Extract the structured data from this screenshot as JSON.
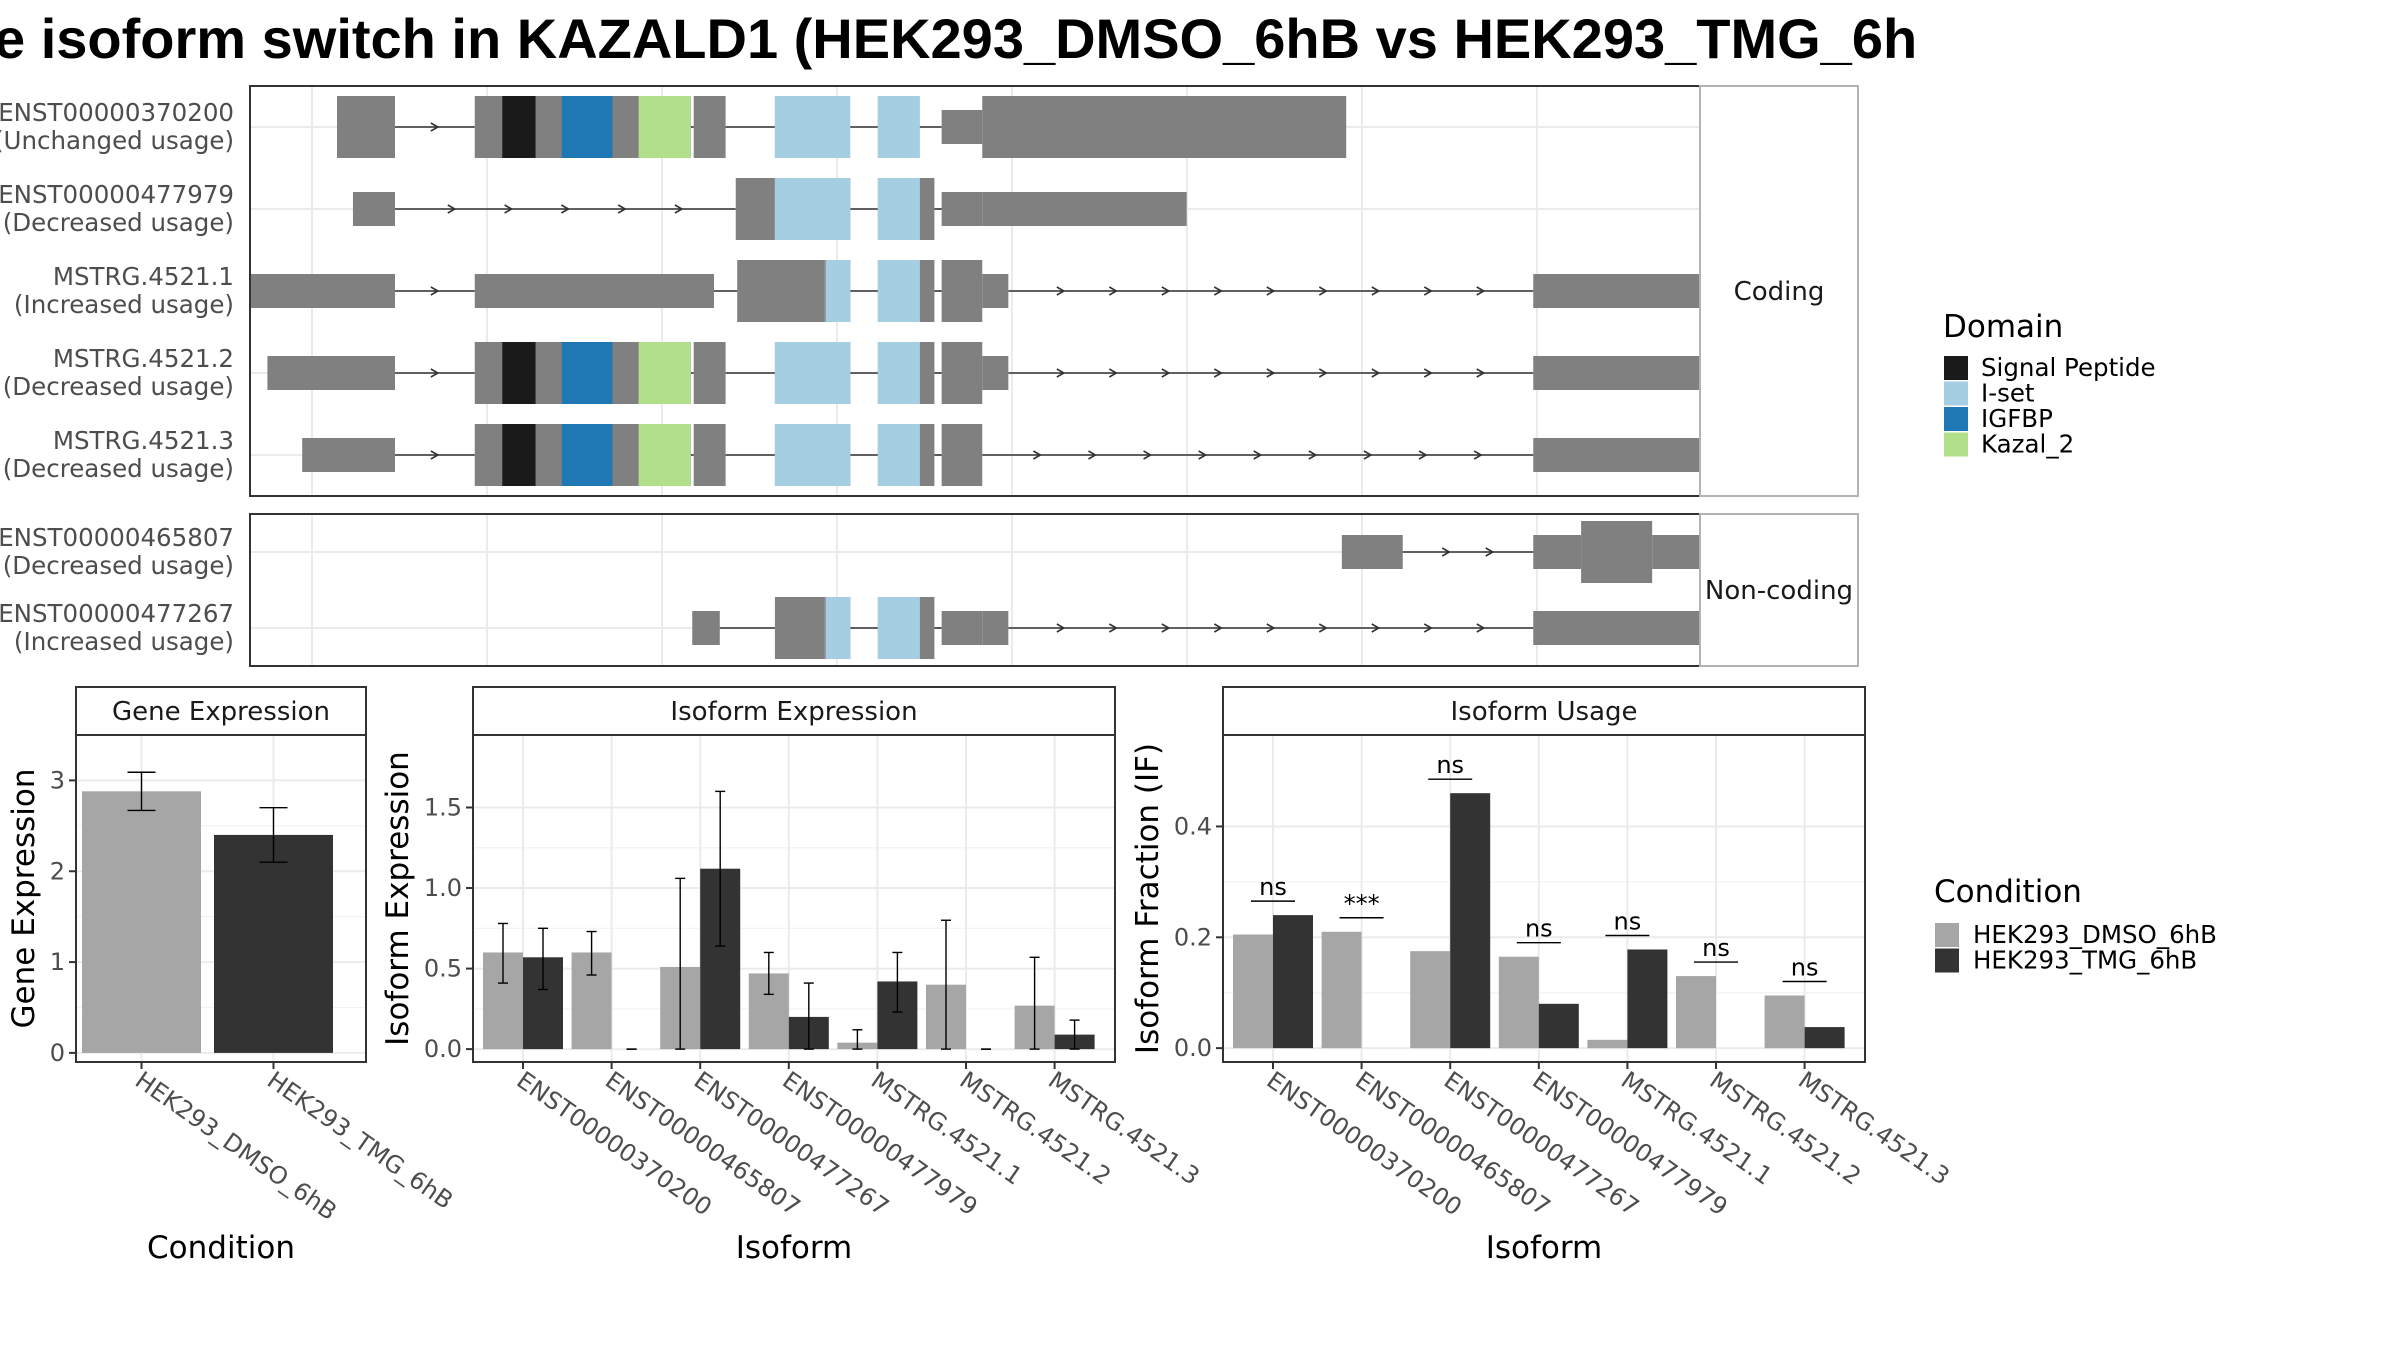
{
  "title": "e isoform switch in KAZALD1 (HEK293_DMSO_6hB vs HEK293_TMG_6h",
  "colors": {
    "exon": "#808080",
    "signal_peptide": "#1a1a1a",
    "i_set": "#a6cee3",
    "igfbp": "#1f78b4",
    "kazal_2": "#b2df8a",
    "dmso": "#a6a6a6",
    "tmg": "#333333"
  },
  "domain_legend": {
    "title": "Domain",
    "items": [
      {
        "label": "Signal Peptide",
        "color_key": "signal_peptide"
      },
      {
        "label": "I-set",
        "color_key": "i_set"
      },
      {
        "label": "IGFBP",
        "color_key": "igfbp"
      },
      {
        "label": "Kazal_2",
        "color_key": "kazal_2"
      }
    ]
  },
  "condition_legend": {
    "title": "Condition",
    "items": [
      {
        "label": "HEK293_DMSO_6hB",
        "color_key": "dmso"
      },
      {
        "label": "HEK293_TMG_6hB",
        "color_key": "tmg"
      }
    ]
  },
  "chart_data": [
    {
      "type": "gene-structure",
      "panels": [
        {
          "strip": "Coding",
          "isoforms": [
            {
              "name": "ENST00000370200",
              "usage": "(Unchanged usage)",
              "exons": [
                [
                  0.06,
                  0.1
                ],
                [
                  0.155,
                  0.177
                ],
                [
                  0.177,
                  0.242
                ],
                [
                  0.244,
                  0.304
                ],
                [
                  0.306,
                  0.328
                ],
                [
                  0.362,
                  0.388
                ],
                [
                  0.433,
                  0.444
                ],
                [
                  0.477,
                  0.505
                ],
                [
                  0.505,
                  0.756
                ]
              ],
              "utr": [
                [
                  0.155,
                  0.174
                ],
                [
                  0.328,
                  0.335
                ],
                [
                  0.477,
                  0.505
                ]
              ],
              "domains": [
                [
                  0.174,
                  0.197,
                  "signal_peptide"
                ],
                [
                  0.197,
                  0.215,
                  "exon"
                ],
                [
                  0.215,
                  0.25,
                  "igfbp"
                ],
                [
                  0.25,
                  0.268,
                  "exon"
                ],
                [
                  0.268,
                  0.304,
                  "kazal_2"
                ],
                [
                  0.362,
                  0.414,
                  "i_set"
                ],
                [
                  0.433,
                  0.462,
                  "i_set"
                ]
              ]
            },
            {
              "name": "ENST00000477979",
              "usage": "(Decreased usage)",
              "exons": [
                [
                  0.071,
                  0.1
                ],
                [
                  0.335,
                  0.362
                ],
                [
                  0.362,
                  0.414
                ],
                [
                  0.433,
                  0.472
                ],
                [
                  0.477,
                  0.505
                ],
                [
                  0.505,
                  0.646
                ]
              ],
              "utr": [
                [
                  0.071,
                  0.1
                ],
                [
                  0.335,
                  0.347
                ],
                [
                  0.477,
                  0.505
                ],
                [
                  0.505,
                  0.646
                ]
              ],
              "domains": [
                [
                  0.362,
                  0.414,
                  "i_set"
                ],
                [
                  0.433,
                  0.462,
                  "i_set"
                ]
              ]
            },
            {
              "name": "MSTRG.4521.1",
              "usage": "(Increased usage)",
              "exons": [
                [
                  0.0,
                  0.1
                ],
                [
                  0.155,
                  0.32
                ],
                [
                  0.336,
                  0.396
                ],
                [
                  0.396,
                  0.414
                ],
                [
                  0.433,
                  0.472
                ],
                [
                  0.477,
                  0.505
                ],
                [
                  0.505,
                  0.523
                ],
                [
                  0.885,
                  1.024
                ]
              ],
              "utr": [
                [
                  0.0,
                  0.1
                ],
                [
                  0.155,
                  0.32
                ],
                [
                  0.336,
                  0.391
                ],
                [
                  0.505,
                  0.523
                ],
                [
                  0.885,
                  1.024
                ]
              ],
              "domains": [
                [
                  0.397,
                  0.414,
                  "i_set"
                ],
                [
                  0.433,
                  0.462,
                  "i_set"
                ]
              ]
            },
            {
              "name": "MSTRG.4521.2",
              "usage": "(Decreased usage)",
              "exons": [
                [
                  0.012,
                  0.1
                ],
                [
                  0.155,
                  0.177
                ],
                [
                  0.177,
                  0.242
                ],
                [
                  0.244,
                  0.304
                ],
                [
                  0.306,
                  0.328
                ],
                [
                  0.362,
                  0.414
                ],
                [
                  0.433,
                  0.472
                ],
                [
                  0.477,
                  0.505
                ],
                [
                  0.505,
                  0.523
                ],
                [
                  0.885,
                  1.024
                ]
              ],
              "utr": [
                [
                  0.012,
                  0.1
                ],
                [
                  0.155,
                  0.174
                ],
                [
                  0.505,
                  0.523
                ],
                [
                  0.885,
                  1.024
                ]
              ],
              "domains": [
                [
                  0.174,
                  0.197,
                  "signal_peptide"
                ],
                [
                  0.197,
                  0.215,
                  "exon"
                ],
                [
                  0.215,
                  0.25,
                  "igfbp"
                ],
                [
                  0.25,
                  0.268,
                  "exon"
                ],
                [
                  0.268,
                  0.304,
                  "kazal_2"
                ],
                [
                  0.362,
                  0.414,
                  "i_set"
                ],
                [
                  0.433,
                  0.462,
                  "i_set"
                ]
              ]
            },
            {
              "name": "MSTRG.4521.3",
              "usage": "(Decreased usage)",
              "exons": [
                [
                  0.036,
                  0.1
                ],
                [
                  0.155,
                  0.177
                ],
                [
                  0.177,
                  0.242
                ],
                [
                  0.244,
                  0.304
                ],
                [
                  0.306,
                  0.328
                ],
                [
                  0.362,
                  0.414
                ],
                [
                  0.433,
                  0.472
                ],
                [
                  0.477,
                  0.505
                ],
                [
                  0.885,
                  1.024
                ]
              ],
              "utr": [
                [
                  0.036,
                  0.1
                ],
                [
                  0.155,
                  0.174
                ],
                [
                  0.885,
                  1.024
                ]
              ],
              "domains": [
                [
                  0.174,
                  0.197,
                  "signal_peptide"
                ],
                [
                  0.197,
                  0.215,
                  "exon"
                ],
                [
                  0.215,
                  0.25,
                  "igfbp"
                ],
                [
                  0.25,
                  0.268,
                  "exon"
                ],
                [
                  0.268,
                  0.304,
                  "kazal_2"
                ],
                [
                  0.362,
                  0.414,
                  "i_set"
                ],
                [
                  0.433,
                  0.462,
                  "i_set"
                ]
              ]
            }
          ]
        },
        {
          "strip": "Non-coding",
          "isoforms": [
            {
              "name": "ENST00000465807",
              "usage": "(Decreased usage)",
              "exons": [
                [
                  0.753,
                  0.795
                ],
                [
                  0.885,
                  0.918
                ],
                [
                  0.918,
                  0.967
                ],
                [
                  0.967,
                  1.024
                ]
              ],
              "utr": [
                [
                  0.753,
                  0.795
                ],
                [
                  0.885,
                  0.918
                ],
                [
                  0.967,
                  1.024
                ]
              ],
              "domains": []
            },
            {
              "name": "ENST00000477267",
              "usage": "(Increased usage)",
              "exons": [
                [
                  0.305,
                  0.324
                ],
                [
                  0.362,
                  0.396
                ],
                [
                  0.396,
                  0.414
                ],
                [
                  0.433,
                  0.472
                ],
                [
                  0.477,
                  0.505
                ],
                [
                  0.505,
                  0.523
                ],
                [
                  0.885,
                  1.024
                ]
              ],
              "utr": [
                [
                  0.305,
                  0.324
                ],
                [
                  0.362,
                  0.391
                ],
                [
                  0.477,
                  0.505
                ],
                [
                  0.505,
                  0.523
                ],
                [
                  0.885,
                  1.024
                ]
              ],
              "domains": [
                [
                  0.397,
                  0.414,
                  "i_set"
                ],
                [
                  0.433,
                  0.462,
                  "i_set"
                ]
              ]
            }
          ]
        }
      ]
    },
    {
      "type": "bar",
      "strip": "Gene Expression",
      "xlabel": "Condition",
      "ylabel": "Gene Expression",
      "ylim": [
        -0.1,
        3.5
      ],
      "yticks": [
        0,
        1,
        2,
        3
      ],
      "categories": [
        "HEK293_DMSO_6hB",
        "HEK293_TMG_6hB"
      ],
      "values": [
        2.88,
        2.4
      ],
      "errors": [
        [
          2.67,
          3.09
        ],
        [
          2.1,
          2.7
        ]
      ]
    },
    {
      "type": "bar",
      "strip": "Isoform Expression",
      "xlabel": "Isoform",
      "ylabel": "Isoform Expression",
      "ylim": [
        -0.08,
        1.95
      ],
      "yticks": [
        0.0,
        0.5,
        1.0,
        1.5
      ],
      "yticklabels": [
        "0.0",
        "0.5",
        "1.0",
        "1.5"
      ],
      "categories": [
        "ENST00000370200",
        "ENST00000465807",
        "ENST00000477267",
        "ENST00000477979",
        "MSTRG.4521.1",
        "MSTRG.4521.2",
        "MSTRG.4521.3"
      ],
      "series": [
        {
          "name": "HEK293_DMSO_6hB",
          "values": [
            0.6,
            0.6,
            0.51,
            0.47,
            0.04,
            0.4,
            0.27
          ],
          "errors": [
            [
              0.41,
              0.78
            ],
            [
              0.46,
              0.73
            ],
            [
              0.0,
              1.06
            ],
            [
              0.34,
              0.6
            ],
            [
              0.0,
              0.12
            ],
            [
              0.0,
              0.8
            ],
            [
              0.0,
              0.57
            ]
          ]
        },
        {
          "name": "HEK293_TMG_6hB",
          "values": [
            0.57,
            0.0,
            1.12,
            0.2,
            0.42,
            0.0,
            0.09
          ],
          "errors": [
            [
              0.37,
              0.75
            ],
            [
              0.0,
              0.0
            ],
            [
              0.64,
              1.6
            ],
            [
              0.0,
              0.41
            ],
            [
              0.23,
              0.6
            ],
            [
              0.0,
              0.0
            ],
            [
              0.0,
              0.18
            ]
          ]
        }
      ]
    },
    {
      "type": "bar",
      "strip": "Isoform Usage",
      "xlabel": "Isoform",
      "ylabel": "Isoform Fraction (IF)",
      "ylim": [
        -0.025,
        0.565
      ],
      "yticks": [
        0.0,
        0.2,
        0.4
      ],
      "yticklabels": [
        "0.0",
        "0.2",
        "0.4"
      ],
      "categories": [
        "ENST00000370200",
        "ENST00000465807",
        "ENST00000477267",
        "ENST00000477979",
        "MSTRG.4521.1",
        "MSTRG.4521.2",
        "MSTRG.4521.3"
      ],
      "series": [
        {
          "name": "HEK293_DMSO_6hB",
          "values": [
            0.205,
            0.21,
            0.175,
            0.165,
            0.015,
            0.13,
            0.095
          ]
        },
        {
          "name": "HEK293_TMG_6hB",
          "values": [
            0.24,
            0.0,
            0.46,
            0.08,
            0.178,
            0.0,
            0.038
          ]
        }
      ],
      "significance": [
        "ns",
        "***",
        "ns",
        "ns",
        "ns",
        "ns",
        "ns"
      ]
    }
  ]
}
